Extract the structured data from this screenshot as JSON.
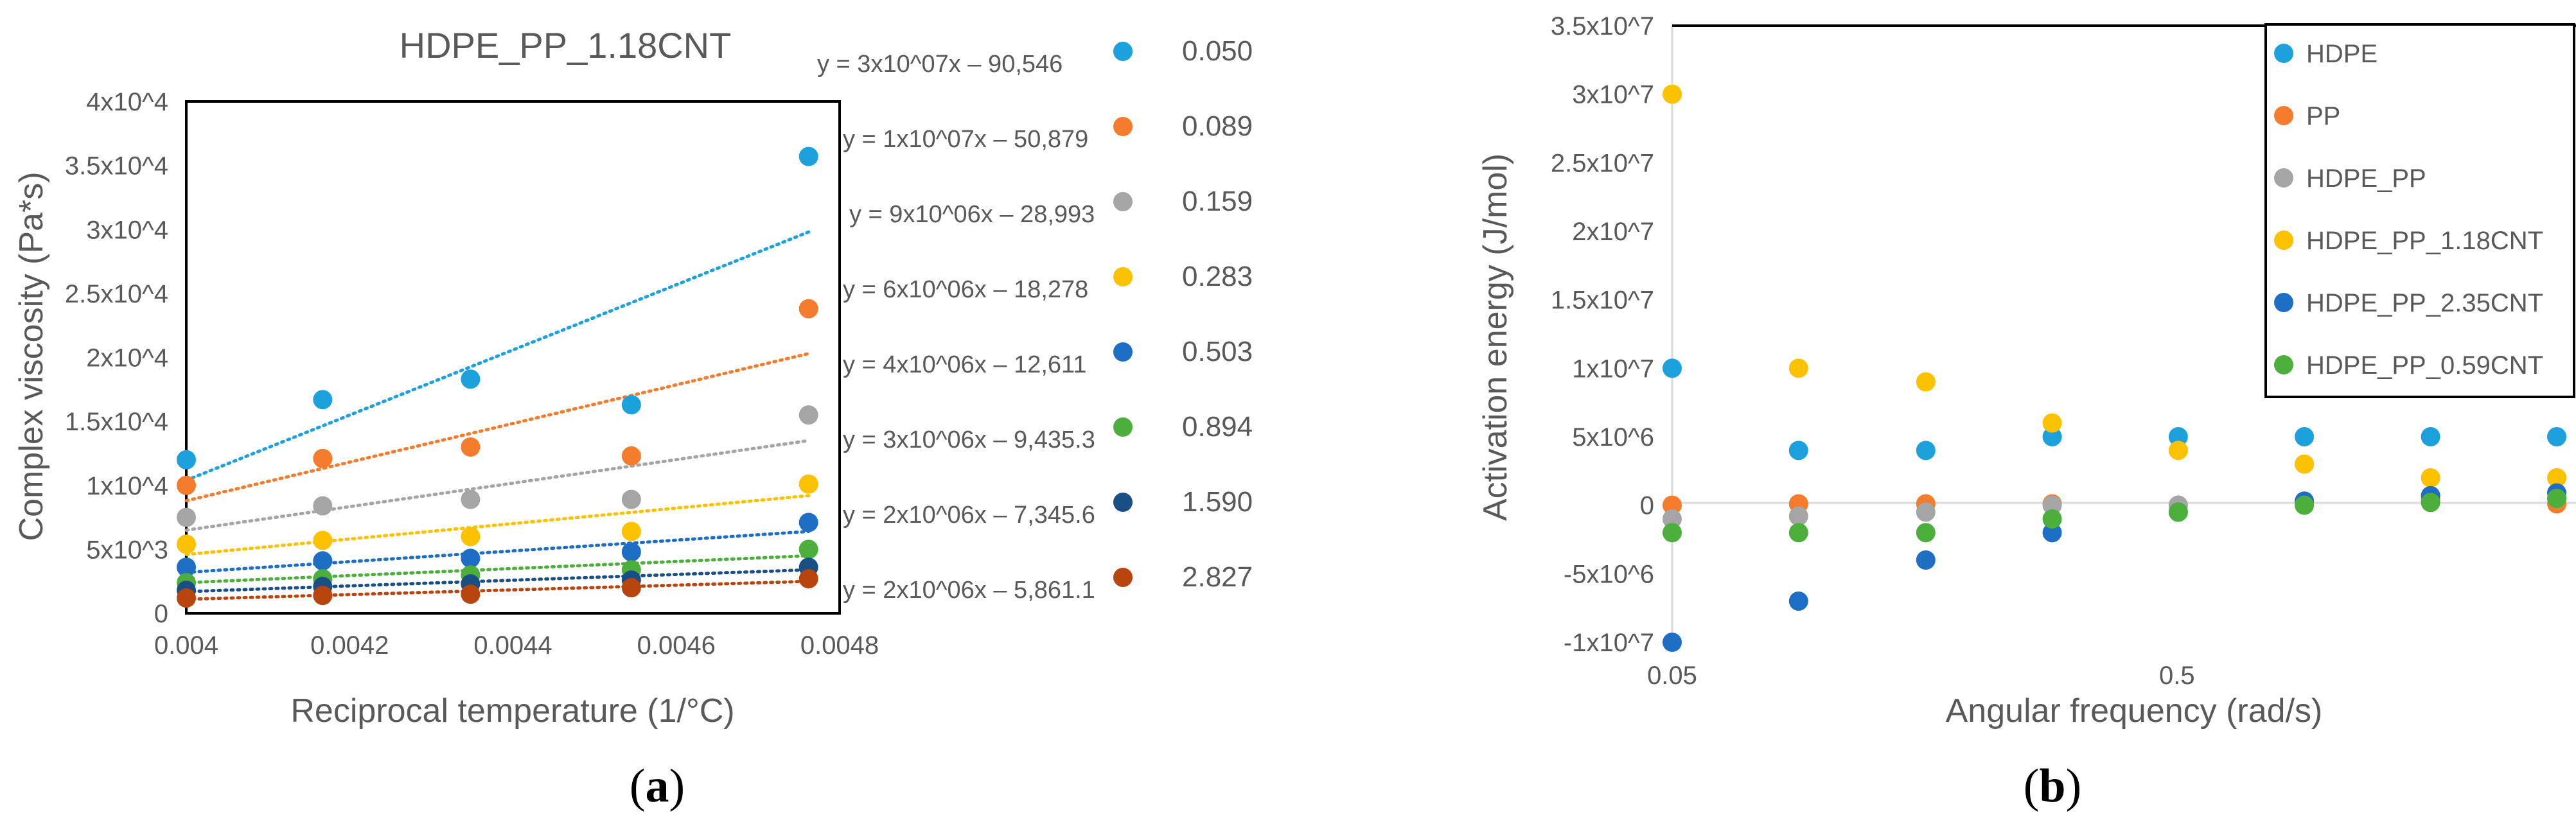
{
  "chart_data": [
    {
      "panel_label": "a",
      "type": "scatter",
      "title": "HDPE_PP_1.18CNT",
      "xlabel": "Reciprocal temperature (1/°C)",
      "ylabel": "Complex viscosity (Pa*s)",
      "xlim": [
        0.004,
        0.0048
      ],
      "ylim": [
        0,
        40000
      ],
      "xticks": [
        0.004,
        0.0042,
        0.0044,
        0.0046,
        0.0048
      ],
      "xtick_labels": [
        "0.004",
        "0.0042",
        "0.0044",
        "0.0046",
        "0.0048"
      ],
      "yticks": [
        0,
        5000,
        10000,
        15000,
        20000,
        25000,
        30000,
        35000,
        40000
      ],
      "ytick_labels": [
        "0",
        "5x10^3",
        "1x10^4",
        "1.5x10^4",
        "2x10^4",
        "2.5x10^4",
        "3x10^4",
        "3.5x10^4",
        "4x10^4"
      ],
      "grid": false,
      "legend_position": "right",
      "x": [
        0.004,
        0.004167,
        0.004348,
        0.004545,
        0.004762
      ],
      "series": [
        {
          "name": "0.050",
          "color": "#1ca1dc",
          "values": [
            12000,
            16700,
            18300,
            16300,
            35700
          ],
          "trendline": "y = 3x10^07x – 90,546",
          "trend": [
            10400,
            29800
          ]
        },
        {
          "name": "0.089",
          "color": "#f47c2c",
          "values": [
            10000,
            12100,
            13000,
            12300,
            23800
          ],
          "trendline": "y = 1x10^07x – 50,879",
          "trend": [
            8800,
            20300
          ]
        },
        {
          "name": "0.159",
          "color": "#a5a5a5",
          "values": [
            7500,
            8400,
            8900,
            8900,
            15500
          ],
          "trendline": "y = 9x10^06x – 28,993",
          "trend": [
            6500,
            13500
          ]
        },
        {
          "name": "0.283",
          "color": "#fcc200",
          "values": [
            5400,
            5700,
            6000,
            6400,
            10100
          ],
          "trendline": "y = 6x10^06x – 18,278",
          "trend": [
            4600,
            9200
          ]
        },
        {
          "name": "0.503",
          "color": "#1f6ec6",
          "values": [
            3600,
            4100,
            4300,
            4800,
            7100
          ],
          "trendline": "y = 4x10^06x – 12,611",
          "trend": [
            3200,
            6400
          ]
        },
        {
          "name": "0.894",
          "color": "#4caf3c",
          "values": [
            2400,
            2700,
            3000,
            3400,
            5000
          ],
          "trendline": "y = 3x10^06x – 9,435.3",
          "trend": [
            2400,
            4500
          ]
        },
        {
          "name": "1.590",
          "color": "#1a4f86",
          "values": [
            1800,
            2100,
            2300,
            2600,
            3600
          ],
          "trendline": "y = 2x10^06x – 7,345.6",
          "trend": [
            1700,
            3400
          ]
        },
        {
          "name": "2.827",
          "color": "#b8440e",
          "values": [
            1200,
            1400,
            1500,
            2000,
            2700
          ],
          "trendline": "y = 2x10^06x – 5,861.1",
          "trend": [
            1100,
            2500
          ]
        }
      ]
    },
    {
      "panel_label": "b",
      "type": "scatter",
      "title": "",
      "xlabel": "Angular frequency (rad/s)",
      "ylabel": "Activation energy (J/mol)",
      "xscale": "log",
      "xlim": [
        0.05,
        2.827
      ],
      "ylim": [
        -10000000,
        35000000
      ],
      "xticks": [
        0.05,
        0.5
      ],
      "xtick_labels": [
        "0.05",
        "0.5"
      ],
      "yticks": [
        -10000000,
        -5000000,
        0,
        5000000,
        10000000,
        15000000,
        20000000,
        25000000,
        30000000,
        35000000
      ],
      "ytick_labels": [
        "-1x10^7",
        "-5x10^6",
        "0",
        "5x10^6",
        "1x10^7",
        "1.5x10^7",
        "2x10^7",
        "2.5x10^7",
        "3x10^7",
        "3.5x10^7"
      ],
      "grid": false,
      "legend_position": "top-right",
      "x": [
        0.05,
        0.089,
        0.159,
        0.283,
        0.503,
        0.894,
        1.59,
        2.827
      ],
      "series": [
        {
          "name": "HDPE",
          "color": "#1ca1dc",
          "values": [
            10000000,
            4000000,
            4000000,
            5000000,
            5000000,
            5000000,
            5000000,
            5000000
          ]
        },
        {
          "name": "PP",
          "color": "#f47c2c",
          "values": [
            0,
            100000,
            100000,
            100000,
            0,
            200000,
            300000,
            100000
          ]
        },
        {
          "name": "HDPE_PP",
          "color": "#a5a5a5",
          "values": [
            -1000000,
            -800000,
            -500000,
            0,
            0,
            200000,
            500000,
            500000
          ]
        },
        {
          "name": "HDPE_PP_1.18CNT",
          "color": "#fcc200",
          "values": [
            30000000,
            10000000,
            9000000,
            6000000,
            4000000,
            3000000,
            2000000,
            2000000
          ]
        },
        {
          "name": "HDPE_PP_2.35CNT",
          "color": "#1f6ec6",
          "values": [
            -10000000,
            -7000000,
            -4000000,
            -2000000,
            -500000,
            300000,
            700000,
            900000
          ]
        },
        {
          "name": "HDPE_PP_0.59CNT",
          "color": "#4caf3c",
          "values": [
            -2000000,
            -2000000,
            -2000000,
            -1000000,
            -500000,
            0,
            200000,
            500000
          ]
        }
      ]
    }
  ]
}
